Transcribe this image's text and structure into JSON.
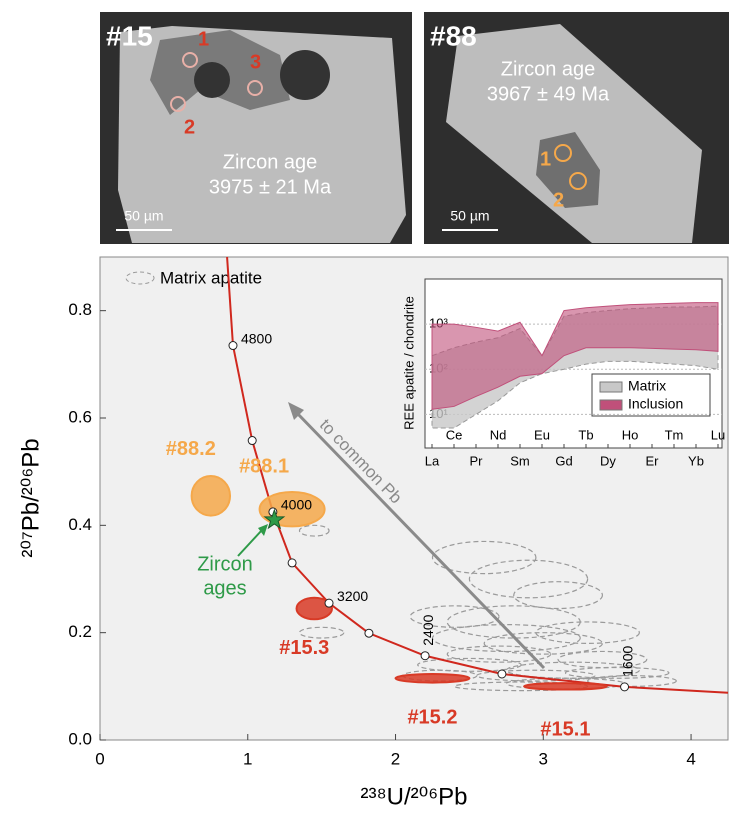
{
  "panels": [
    {
      "title": "#15",
      "spots": [
        "1",
        "2",
        "3"
      ],
      "age_title": "Zircon age",
      "age": "3975 ± 21 Ma",
      "scale": "50 µm"
    },
    {
      "title": "#88",
      "spots": [
        "1",
        "2"
      ],
      "age_title": "Zircon age",
      "age": "3967 ± 49 Ma",
      "scale": "50 µm"
    }
  ],
  "chart_data": [
    {
      "type": "scatter",
      "xlabel": "²³⁸U/²⁰⁶Pb",
      "ylabel": "²⁰⁷Pb/²⁰⁶Pb",
      "xlim": [
        0,
        4.25
      ],
      "ylim": [
        0,
        0.9
      ],
      "xticks": [
        0,
        1,
        2,
        3,
        4
      ],
      "yticks": [
        {
          "value": 0,
          "label": "0.0"
        },
        {
          "value": 0.2,
          "label": "0.2"
        },
        {
          "value": 0.4,
          "label": "0.4"
        },
        {
          "value": 0.6,
          "label": "0.6"
        },
        {
          "value": 0.8,
          "label": "0.8"
        }
      ],
      "concordia": {
        "color": "#d0281e",
        "x": [
          0.86,
          0.9,
          1.03,
          1.17,
          1.3,
          1.55,
          1.82,
          2.2,
          2.72,
          3.55,
          4.25
        ],
        "values": [
          0.9,
          0.735,
          0.558,
          0.425,
          0.33,
          0.255,
          0.199,
          0.157,
          0.123,
          0.099,
          0.088
        ]
      },
      "age_markers": {
        "x": [
          0.9,
          1.03,
          1.17,
          1.3,
          1.55,
          1.82,
          2.2,
          2.72,
          3.55
        ],
        "values": [
          0.735,
          0.558,
          0.425,
          0.33,
          0.255,
          0.199,
          0.157,
          0.123,
          0.099
        ],
        "ages": [
          4800,
          null,
          4000,
          null,
          3200,
          null,
          2400,
          null,
          1600
        ]
      },
      "matrix": {
        "name": "Matrix apatite",
        "color": "#9a9a9a",
        "x": [
          2.6,
          2.9,
          3.1,
          2.4,
          2.8,
          3.3,
          3.0,
          2.7,
          3.4,
          2.5,
          3.2,
          2.95,
          3.6,
          2.3,
          3.15,
          2.85,
          1.5,
          1.45,
          3.5,
          2.75
        ],
        "values": [
          0.34,
          0.3,
          0.27,
          0.23,
          0.22,
          0.2,
          0.18,
          0.16,
          0.15,
          0.14,
          0.13,
          0.12,
          0.11,
          0.12,
          0.105,
          0.1,
          0.2,
          0.39,
          0.125,
          0.19
        ],
        "x_err": [
          0.35,
          0.4,
          0.3,
          0.3,
          0.45,
          0.35,
          0.4,
          0.35,
          0.3,
          0.35,
          0.45,
          0.4,
          0.3,
          0.25,
          0.4,
          0.45,
          0.15,
          0.1,
          0.35,
          0.5
        ],
        "y_err": [
          0.03,
          0.035,
          0.025,
          0.02,
          0.03,
          0.02,
          0.02,
          0.015,
          0.015,
          0.012,
          0.015,
          0.01,
          0.01,
          0.01,
          0.01,
          0.008,
          0.01,
          0.01,
          0.01,
          0.025
        ]
      },
      "spots": [
        {
          "name": "#88.2",
          "color": "#f5a84a",
          "x": 0.75,
          "value": 0.455,
          "x_err": 0.13,
          "y_err": 0.037
        },
        {
          "name": "#88.1",
          "color": "#f5a84a",
          "x": 1.3,
          "value": 0.43,
          "x_err": 0.22,
          "y_err": 0.032
        },
        {
          "name": "#15.3",
          "color": "#d83a26",
          "x": 1.45,
          "value": 0.245,
          "x_err": 0.12,
          "y_err": 0.02
        },
        {
          "name": "#15.2",
          "color": "#d83a26",
          "x": 2.25,
          "value": 0.115,
          "x_err": 0.25,
          "y_err": 0.008
        },
        {
          "name": "#15.1",
          "color": "#d83a26",
          "x": 3.15,
          "value": 0.1,
          "x_err": 0.28,
          "y_err": 0.006
        }
      ],
      "zircon_ages": {
        "label": [
          "Zircon",
          "ages"
        ],
        "x": 1.18,
        "value": 0.41,
        "color": "#2e9a48"
      },
      "arrow": {
        "label": "to common Pb",
        "color": "#8a8a8a"
      }
    },
    {
      "type": "area",
      "ylabel": "REE apatite / chondrite",
      "categories": [
        "La",
        "Ce",
        "Pr",
        "Nd",
        "Sm",
        "Eu",
        "Gd",
        "Tb",
        "Dy",
        "Ho",
        "Er",
        "Tm",
        "Yb",
        "Lu"
      ],
      "log_scale": true,
      "grid": true,
      "ylim": [
        1.8,
        10000
      ],
      "yticks": [
        {
          "value": 10,
          "label": "10¹"
        },
        {
          "value": 100,
          "label": "10²"
        },
        {
          "value": 1000,
          "label": "10³"
        }
      ],
      "series": [
        {
          "name": "Matrix",
          "color": "#c8c8c8",
          "values": [
            200,
            300,
            400,
            500,
            800,
            200,
            1500,
            1800,
            2000,
            2200,
            2300,
            2400,
            2400,
            2500
          ],
          "lower": [
            5,
            5,
            10,
            20,
            50,
            80,
            100,
            130,
            150,
            150,
            140,
            130,
            120,
            100
          ]
        },
        {
          "name": "Inclusion",
          "color": "#c0507a",
          "values": [
            1000,
            1000,
            850,
            700,
            1100,
            200,
            2000,
            2300,
            2500,
            2700,
            2800,
            2900,
            3000,
            3000
          ],
          "lower": [
            13,
            15,
            25,
            40,
            70,
            80,
            200,
            300,
            300,
            300,
            290,
            280,
            270,
            250
          ]
        }
      ]
    }
  ]
}
